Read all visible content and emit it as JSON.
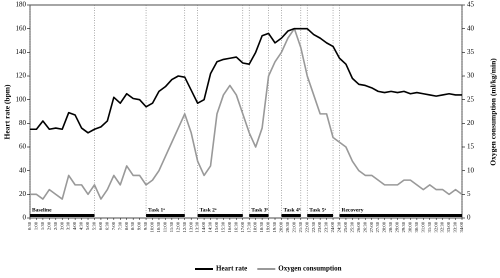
{
  "chart_data": {
    "type": "line",
    "y_label": "Heart rate (bpm)",
    "y2_label": "Oxygen consumption (ml/kg/min)",
    "categories": [
      "0:30",
      "1:00",
      "1:30",
      "2:00",
      "2:30",
      "3:00",
      "3:30",
      "4:00",
      "4:30",
      "5:00",
      "5:30",
      "6:00",
      "6:30",
      "7:00",
      "7:30",
      "8:00",
      "8:30",
      "9:00",
      "9:30",
      "10:00",
      "10:30",
      "11:00",
      "11:30",
      "12:00",
      "12:30",
      "13:00",
      "13:30",
      "14:00",
      "14:30",
      "15:00",
      "15:30",
      "16:00",
      "16:30",
      "17:00",
      "17:30",
      "18:00",
      "18:30",
      "19:00",
      "19:30",
      "20:00",
      "20:30",
      "21:00",
      "21:30",
      "22:00",
      "22:30",
      "23:00",
      "23:30",
      "24:00",
      "24:30",
      "25:00",
      "25:30",
      "26:00",
      "26:30",
      "27:00",
      "27:30",
      "28:00",
      "28:30",
      "29:00",
      "29:30",
      "30:00",
      "30:30",
      "31:00",
      "31:30",
      "32:00",
      "32:30",
      "33:00",
      "33:30",
      "34:00"
    ],
    "series": [
      {
        "name": "Heart rate",
        "color": "#000000",
        "axis": "y",
        "values": [
          75,
          75,
          82,
          75,
          76,
          75,
          89,
          87,
          76,
          72,
          75,
          77,
          82,
          102,
          97,
          105,
          101,
          100,
          94,
          97,
          107,
          111,
          117,
          120,
          119,
          108,
          97,
          100,
          122,
          132,
          134,
          135,
          136,
          131,
          130,
          140,
          154,
          156,
          148,
          152,
          158,
          160,
          160,
          160,
          155,
          152,
          148,
          145,
          135,
          130,
          118,
          113,
          112,
          110,
          107,
          106,
          107,
          106,
          107,
          105,
          106,
          105,
          104,
          103,
          104,
          105,
          104,
          104
        ]
      },
      {
        "name": "Oxygen consumption",
        "color": "#999999",
        "axis": "y2",
        "values": [
          5,
          5,
          4,
          6,
          5,
          4,
          9,
          7,
          7,
          5,
          7,
          4,
          6,
          9,
          7,
          11,
          9,
          9,
          7,
          8,
          10,
          13,
          16,
          19,
          22,
          18,
          12,
          9,
          11,
          22,
          26,
          28,
          26,
          22,
          18,
          15,
          19,
          30,
          33,
          35,
          38,
          40,
          36,
          30,
          26,
          22,
          22,
          17,
          16,
          15,
          12,
          10,
          9,
          9,
          8,
          7,
          7,
          7,
          8,
          8,
          7,
          6,
          7,
          6,
          6,
          5,
          6,
          5
        ]
      }
    ],
    "ylim": [
      0,
      180
    ],
    "yticks": [
      0,
      20,
      40,
      60,
      80,
      100,
      120,
      140,
      160,
      180
    ],
    "y2lim": [
      0,
      45
    ],
    "y2ticks": [
      0,
      5,
      10,
      15,
      20,
      25,
      30,
      35,
      40,
      45
    ],
    "phases": [
      {
        "label": "Baseline",
        "start": "0:30",
        "end": "5:30"
      },
      {
        "label": "Task 1ᵃ",
        "start": "9:30",
        "end": "12:30"
      },
      {
        "label": "Task 2ᵃ",
        "start": "13:30",
        "end": "17:00"
      },
      {
        "label": "Task 3ᵇ",
        "start": "17:30",
        "end": "19:00"
      },
      {
        "label": "Task 4ᵇ",
        "start": "20:00",
        "end": "21:30"
      },
      {
        "label": "Task 5ᵃ",
        "start": "22:00",
        "end": "24:00"
      },
      {
        "label": "Recovery",
        "start": "24:30",
        "end": "34:00"
      }
    ],
    "legend": "bottom"
  }
}
